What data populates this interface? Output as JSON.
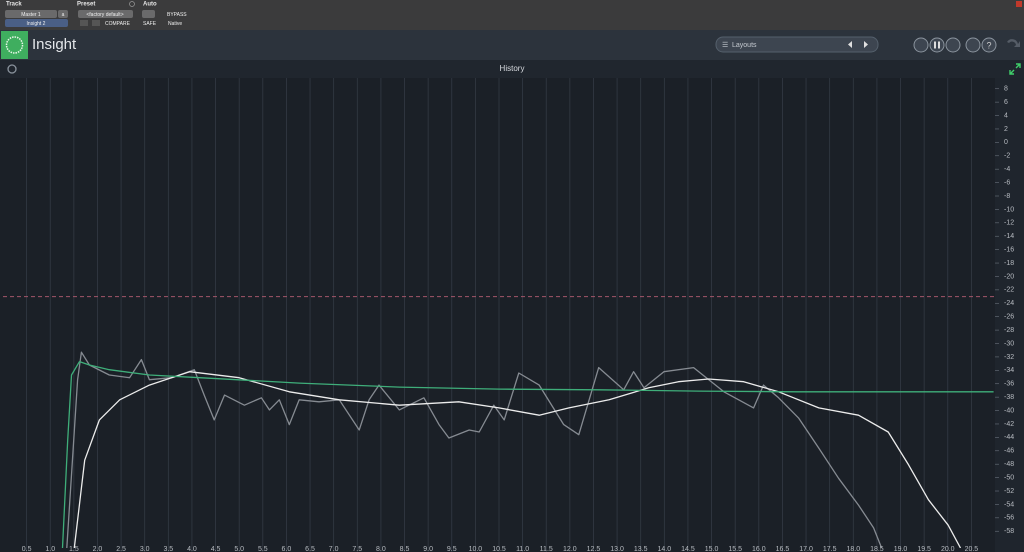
{
  "toolbar": {
    "track_label": "Track",
    "preset_label": "Preset",
    "auto_label": "Auto",
    "track_name": "Master 1",
    "track_button": "a",
    "insert_name": "Insight 2",
    "preset_name": "<factory default>",
    "compare": "COMPARE",
    "bypass": "BYPASS",
    "safe": "SAFE",
    "native": "Native"
  },
  "plugin": {
    "name": "Insight",
    "layouts": "Layouts"
  },
  "chart_data": {
    "type": "line",
    "title": "History",
    "xlim": [
      0,
      21
    ],
    "ylim": [
      -60.5,
      9.6
    ],
    "xticks": [
      0.5,
      {
        "value": 1,
        "label": "1.0"
      },
      1.5,
      {
        "value": 2,
        "label": "2.0"
      },
      2.5,
      {
        "value": 3,
        "label": "3.0"
      },
      3.5,
      {
        "value": 4,
        "label": "4.0"
      },
      4.5,
      {
        "value": 5,
        "label": "5.0"
      },
      5.5,
      {
        "value": 6,
        "label": "6.0"
      },
      6.5,
      {
        "value": 7,
        "label": "7.0"
      },
      7.5,
      {
        "value": 8,
        "label": "8.0"
      },
      8.5,
      {
        "value": 9,
        "label": "9.0"
      },
      9.5,
      {
        "value": 10,
        "label": "10.0"
      },
      10.5,
      {
        "value": 11,
        "label": "11.0"
      },
      11.5,
      {
        "value": 12,
        "label": "12.0"
      },
      12.5,
      {
        "value": 13,
        "label": "13.0"
      },
      13.5,
      {
        "value": 14,
        "label": "14.0"
      },
      14.5,
      {
        "value": 15,
        "label": "15.0"
      },
      15.5,
      {
        "value": 16,
        "label": "16.0"
      },
      16.5,
      {
        "value": 17,
        "label": "17.0"
      },
      17.5,
      {
        "value": 18,
        "label": "18.0"
      },
      18.5,
      {
        "value": 19,
        "label": "19.0"
      },
      19.5,
      {
        "value": 20,
        "label": "20.0"
      },
      20.5
    ],
    "yticks": [
      8,
      6,
      4,
      2,
      0,
      -2,
      -4,
      -6,
      -8,
      -10,
      -12,
      -14,
      -16,
      -18,
      -20,
      -22,
      -24,
      -26,
      -28,
      -30,
      -32,
      -34,
      -36,
      -38,
      -40,
      -42,
      -44,
      -46,
      -48,
      -50,
      -52,
      -54,
      -56,
      -58
    ],
    "grid": true,
    "reference_line": {
      "value": -23,
      "color": "#a4566a"
    },
    "series": [
      {
        "color": "#868b92",
        "x": [
          1.35,
          1.58,
          1.66,
          1.83,
          2.25,
          2.68,
          2.93,
          3.1,
          3.57,
          4.05,
          4.26,
          4.47,
          4.69,
          5.11,
          5.47,
          5.64,
          5.85,
          6.06,
          6.27,
          6.69,
          7.12,
          7.54,
          7.75,
          7.96,
          8.39,
          8.91,
          9.23,
          9.44,
          9.87,
          10.08,
          10.39,
          10.61,
          10.92,
          11.35,
          11.87,
          12.19,
          12.61,
          13.14,
          13.35,
          13.57,
          13.99,
          14.62,
          15.26,
          15.89,
          16.1,
          16.42,
          16.84,
          17.27,
          17.69,
          18.11,
          18.43,
          18.6
        ],
        "values": [
          -60.5,
          -35.4,
          -31.3,
          -33.2,
          -34.7,
          -35.1,
          -32.4,
          -35.4,
          -35.1,
          -33.9,
          -37.7,
          -41.4,
          -37.7,
          -39.2,
          -38.1,
          -39.9,
          -38.4,
          -42.1,
          -38.4,
          -38.7,
          -38.4,
          -42.9,
          -38.4,
          -36.2,
          -39.9,
          -38.1,
          -42.1,
          -44.1,
          -42.9,
          -43.2,
          -39.2,
          -41.4,
          -34.4,
          -36.2,
          -42.1,
          -43.6,
          -33.6,
          -36.9,
          -34.2,
          -36.6,
          -34.2,
          -33.6,
          -37.2,
          -39.6,
          -36.2,
          -38.1,
          -41.1,
          -45.6,
          -50.1,
          -54.1,
          -57.5,
          -60.5
        ]
      },
      {
        "color": "#ececec",
        "x": [
          1.51,
          1.73,
          2.04,
          2.47,
          3.1,
          3.95,
          5.0,
          6.06,
          7.12,
          8.39,
          9.65,
          10.5,
          11.35,
          11.98,
          12.83,
          13.67,
          14.3,
          14.94,
          15.68,
          16.42,
          17.27,
          18.11,
          18.74,
          19.17,
          19.59,
          20.01,
          20.27
        ],
        "values": [
          -60.5,
          -47.4,
          -41.4,
          -38.4,
          -36.2,
          -34.2,
          -35.1,
          -37.2,
          -38.4,
          -39.2,
          -38.7,
          -39.6,
          -40.7,
          -39.6,
          -38.4,
          -36.6,
          -35.7,
          -35.3,
          -35.7,
          -37.2,
          -39.6,
          -40.7,
          -43.2,
          -48.1,
          -53.3,
          -57.1,
          -60.5
        ]
      },
      {
        "color": "#3fae7a",
        "x": [
          1.26,
          1.37,
          1.45,
          1.62,
          1.83,
          2.25,
          3.1,
          4.16,
          6.27,
          8.39,
          10.5,
          12.61,
          14.73,
          16.84,
          18.95,
          20.97
        ],
        "values": [
          -60.5,
          -44.4,
          -34.7,
          -32.7,
          -33.2,
          -33.9,
          -34.7,
          -35.1,
          -35.9,
          -36.5,
          -36.8,
          -36.9,
          -37.1,
          -37.2,
          -37.2,
          -37.2
        ]
      }
    ]
  }
}
